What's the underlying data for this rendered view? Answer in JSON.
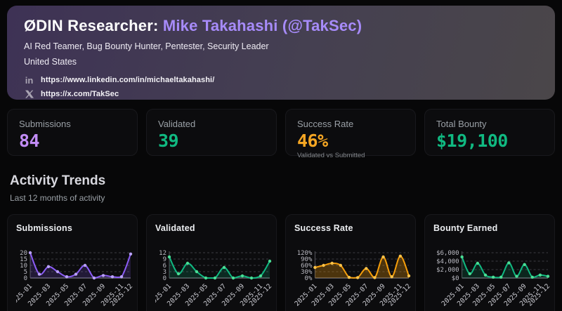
{
  "header": {
    "title_prefix": "ØDIN Researcher:",
    "researcher_name": "Mike Takahashi (@TakSec)",
    "name_accent_color": "#a78bfa",
    "subtitle": "AI Red Teamer, Bug Bounty Hunter, Pentester, Security Leader",
    "country": "United States",
    "links": [
      {
        "icon": "linkedin-icon",
        "url": "https://www.linkedin.com/in/michaeltakahashi/"
      },
      {
        "icon": "x-icon",
        "url": "https://x.com/TakSec"
      }
    ]
  },
  "stats": [
    {
      "label": "Submissions",
      "value": "84",
      "color": "#c18cf5"
    },
    {
      "label": "Validated",
      "value": "39",
      "color": "#10b981"
    },
    {
      "label": "Success Rate",
      "value": "46%",
      "sublabel": "Validated vs Submitted",
      "color": "#f5a623"
    },
    {
      "label": "Total Bounty",
      "value": "$19,100",
      "color": "#10b981"
    }
  ],
  "activity": {
    "title": "Activity Trends",
    "subtitle": "Last 12 months of activity"
  },
  "chart_data": [
    {
      "type": "line",
      "title": "Submissions",
      "categories": [
        "2025-01",
        "2025-02",
        "2025-03",
        "2025-04",
        "2025-05",
        "2025-06",
        "2025-07",
        "2025-08",
        "2025-09",
        "2025-10",
        "2025-11",
        "2025-12"
      ],
      "values": [
        20,
        3,
        9,
        5,
        1,
        3,
        10,
        0,
        2,
        1,
        1,
        19
      ],
      "color": "#8b5cf6",
      "marker_color": "#b9a1f8",
      "fill_opacity": 0.18,
      "ylim": [
        0,
        20
      ],
      "yticks": [
        0,
        5,
        10,
        15,
        20
      ],
      "ytick_labels": [
        "0",
        "5",
        "10",
        "15",
        "20"
      ],
      "xtick_labels_visible": [
        "2025-01",
        "2025-03",
        "2025-05",
        "2025-07",
        "2025-09",
        "2025-11",
        "2025-12"
      ],
      "grid": true,
      "legend": "none"
    },
    {
      "type": "line",
      "title": "Validated",
      "categories": [
        "2025-01",
        "2025-02",
        "2025-03",
        "2025-04",
        "2025-05",
        "2025-06",
        "2025-07",
        "2025-08",
        "2025-09",
        "2025-10",
        "2025-11",
        "2025-12"
      ],
      "values": [
        10,
        2,
        7,
        3,
        0,
        0,
        5,
        0,
        1,
        0,
        1,
        8
      ],
      "color": "#10b981",
      "marker_color": "#4ade95",
      "fill_opacity": 0.18,
      "ylim": [
        0,
        12
      ],
      "yticks": [
        0,
        3,
        6,
        9,
        12
      ],
      "ytick_labels": [
        "0",
        "3",
        "6",
        "9",
        "12"
      ],
      "xtick_labels_visible": [
        "2025-01",
        "2025-03",
        "2025-05",
        "2025-07",
        "2025-09",
        "2025-11",
        "2025-12"
      ],
      "grid": true,
      "legend": "none"
    },
    {
      "type": "line",
      "title": "Success Rate",
      "categories": [
        "2025-01",
        "2025-02",
        "2025-03",
        "2025-04",
        "2025-05",
        "2025-06",
        "2025-07",
        "2025-08",
        "2025-09",
        "2025-10",
        "2025-11",
        "2025-12"
      ],
      "values": [
        50,
        60,
        70,
        60,
        3,
        2,
        45,
        2,
        100,
        6,
        104,
        10
      ],
      "color": "#f59e0b",
      "marker_color": "#fbc34a",
      "fill_opacity": 0.28,
      "ylim": [
        0,
        120
      ],
      "yticks": [
        0,
        30,
        60,
        90,
        120
      ],
      "ytick_labels": [
        "0%",
        "30%",
        "60%",
        "90%",
        "120%"
      ],
      "xtick_labels_visible": [
        "2025-01",
        "2025-03",
        "2025-05",
        "2025-07",
        "2025-09",
        "2025-11",
        "2025-12"
      ],
      "grid": true,
      "legend": "none"
    },
    {
      "type": "line",
      "title": "Bounty Earned",
      "categories": [
        "2025-01",
        "2025-02",
        "2025-03",
        "2025-04",
        "2025-05",
        "2025-06",
        "2025-07",
        "2025-08",
        "2025-09",
        "2025-10",
        "2025-11",
        "2025-12"
      ],
      "values": [
        5000,
        1000,
        3500,
        700,
        200,
        200,
        3600,
        400,
        3200,
        200,
        700,
        400
      ],
      "color": "#10b981",
      "marker_color": "#4ade95",
      "fill_opacity": 0.15,
      "ylim": [
        0,
        6000
      ],
      "yticks": [
        0,
        2000,
        4000,
        6000
      ],
      "ytick_labels": [
        "$0",
        "$2,000",
        "$4,000",
        "$6,000"
      ],
      "xtick_labels_visible": [
        "2025-01",
        "2025-03",
        "2025-05",
        "2025-07",
        "2025-09",
        "2025-11",
        "2025-12"
      ],
      "grid": true,
      "legend": "none"
    }
  ]
}
